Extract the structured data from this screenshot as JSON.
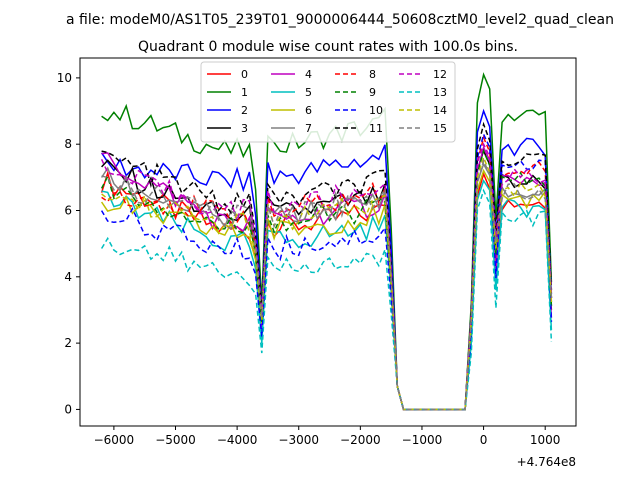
{
  "chart_data": {
    "type": "line",
    "suptitle": "a file: modeM0/AS1T05_239T01_9000006444_50608cztM0_level2_quad_clean",
    "title": "Quadrant 0 module wise count rates with 100.0s bins.",
    "xlabel": "",
    "ylabel": "",
    "x_offset_label": "+4.764e8",
    "xlim": [
      -6550,
      1500
    ],
    "ylim": [
      -0.5,
      10.6
    ],
    "xticks": [
      -6000,
      -5000,
      -4000,
      -3000,
      -2000,
      -1000,
      0,
      1000
    ],
    "xtick_labels": [
      "−6000",
      "−5000",
      "−4000",
      "−3000",
      "−2000",
      "−1000",
      "0",
      "1000"
    ],
    "yticks": [
      0,
      2,
      4,
      6,
      8,
      10
    ],
    "ytick_labels": [
      "0",
      "2",
      "4",
      "6",
      "8",
      "10"
    ],
    "legend_location": "top-center",
    "legend_columns": 4,
    "x": [
      -6200,
      -6100,
      -6000,
      -5900,
      -5800,
      -5700,
      -5600,
      -5500,
      -5400,
      -5300,
      -5200,
      -5100,
      -5000,
      -4900,
      -4800,
      -4700,
      -4600,
      -4500,
      -4400,
      -4300,
      -4200,
      -4100,
      -4000,
      -3900,
      -3800,
      -3700,
      -3600,
      -3500,
      -3400,
      -3300,
      -3200,
      -3100,
      -3000,
      -2900,
      -2800,
      -2700,
      -2600,
      -2500,
      -2400,
      -2300,
      -2200,
      -2100,
      -2000,
      -1900,
      -1800,
      -1700,
      -1600,
      -1500,
      -1400,
      -1300,
      -1200,
      -1100,
      -1000,
      -900,
      -800,
      -700,
      -600,
      -500,
      -400,
      -300,
      -200,
      -100,
      0,
      100,
      200,
      300,
      400,
      500,
      600,
      700,
      800,
      900,
      1000,
      1100
    ],
    "active_ranges": [
      [
        -6200,
        -1400
      ],
      [
        -100,
        1100
      ]
    ],
    "gap_range": [
      -1300,
      -300
    ],
    "dip_x": -3600,
    "post_dip_x": -3500,
    "pre_end_x": -1400,
    "ramp_x": -200,
    "second_dip_x": 200,
    "series": [
      {
        "name": "0",
        "color": "#ff0000",
        "dash": "solid",
        "base": 5.4,
        "start": 6.9,
        "peak": 7.1,
        "dip": 2.5
      },
      {
        "name": "1",
        "color": "#008000",
        "dash": "solid",
        "base": 7.8,
        "start": 9.1,
        "peak": 10.1,
        "dip": 3.2
      },
      {
        "name": "2",
        "color": "#0000ff",
        "dash": "solid",
        "base": 6.9,
        "start": 7.4,
        "peak": 9.0,
        "dip": 2.9
      },
      {
        "name": "3",
        "color": "#000000",
        "dash": "solid",
        "base": 5.8,
        "start": 7.3,
        "peak": 7.8,
        "dip": 2.8
      },
      {
        "name": "4",
        "color": "#bf00bf",
        "dash": "solid",
        "base": 5.6,
        "start": 7.6,
        "peak": 7.9,
        "dip": 2.3
      },
      {
        "name": "5",
        "color": "#00bfbf",
        "dash": "solid",
        "base": 5.0,
        "start": 6.4,
        "peak": 6.9,
        "dip": 2.0
      },
      {
        "name": "6",
        "color": "#bfbf00",
        "dash": "solid",
        "base": 5.3,
        "start": 6.3,
        "peak": 7.2,
        "dip": 2.6
      },
      {
        "name": "7",
        "color": "#808080",
        "dash": "solid",
        "base": 5.7,
        "start": 7.0,
        "peak": 7.4,
        "dip": 2.7
      },
      {
        "name": "8",
        "color": "#ff0000",
        "dash": "dashed",
        "base": 5.9,
        "start": 6.6,
        "peak": 8.2,
        "dip": 2.8
      },
      {
        "name": "9",
        "color": "#008000",
        "dash": "dashed",
        "base": 5.5,
        "start": 6.8,
        "peak": 7.8,
        "dip": 2.6
      },
      {
        "name": "10",
        "color": "#0000ff",
        "dash": "dashed",
        "base": 4.8,
        "start": 6.0,
        "peak": 8.3,
        "dip": 2.2
      },
      {
        "name": "11",
        "color": "#000000",
        "dash": "dashed",
        "base": 6.2,
        "start": 7.7,
        "peak": 8.6,
        "dip": 3.0
      },
      {
        "name": "12",
        "color": "#bf00bf",
        "dash": "dashed",
        "base": 6.0,
        "start": 7.2,
        "peak": 8.0,
        "dip": 2.9
      },
      {
        "name": "13",
        "color": "#00bfbf",
        "dash": "dashed",
        "base": 4.1,
        "start": 5.1,
        "peak": 6.6,
        "dip": 1.7
      },
      {
        "name": "14",
        "color": "#bfbf00",
        "dash": "dashed",
        "base": 5.6,
        "start": 6.5,
        "peak": 7.6,
        "dip": 2.7
      },
      {
        "name": "15",
        "color": "#808080",
        "dash": "dashed",
        "base": 5.8,
        "start": 6.9,
        "peak": 7.5,
        "dip": 2.8
      }
    ]
  }
}
